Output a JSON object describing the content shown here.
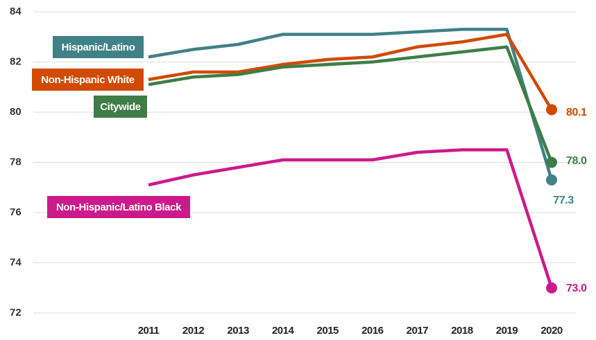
{
  "chart_data": {
    "type": "line",
    "x": [
      2011,
      2012,
      2013,
      2014,
      2015,
      2016,
      2017,
      2018,
      2019,
      2020
    ],
    "xticks": [
      2011,
      2012,
      2013,
      2014,
      2015,
      2016,
      2017,
      2018,
      2019,
      2020
    ],
    "xlim": [
      2011,
      2020
    ],
    "ylim": [
      72,
      84
    ],
    "yticks": [
      72,
      74,
      76,
      78,
      80,
      82,
      84
    ],
    "grid": true,
    "series": [
      {
        "name": "Hispanic/Latino",
        "color": "#3f8187",
        "values": [
          82.2,
          82.5,
          82.7,
          83.1,
          83.1,
          83.1,
          83.2,
          83.3,
          83.3,
          77.3
        ],
        "value_labels": [
          null,
          null,
          null,
          null,
          null,
          null,
          null,
          null,
          null,
          "77.3"
        ]
      },
      {
        "name": "Non-Hispanic White",
        "color": "#d04a02",
        "values": [
          81.3,
          81.6,
          81.6,
          81.9,
          82.1,
          82.2,
          82.6,
          82.8,
          83.1,
          80.1
        ],
        "value_labels": [
          null,
          null,
          null,
          null,
          null,
          null,
          null,
          null,
          null,
          "80.1"
        ]
      },
      {
        "name": "Citywide",
        "color": "#3e7d45",
        "values": [
          81.1,
          81.4,
          81.5,
          81.8,
          81.9,
          82.0,
          82.2,
          82.4,
          82.6,
          78.0
        ],
        "value_labels": [
          null,
          null,
          null,
          null,
          null,
          null,
          null,
          null,
          null,
          "78.0"
        ]
      },
      {
        "name": "Non-Hispanic/Latino Black",
        "color": "#cc1a8a",
        "values": [
          77.1,
          77.5,
          77.8,
          78.1,
          78.1,
          78.1,
          78.4,
          78.5,
          78.5,
          73.0
        ],
        "value_labels": [
          null,
          null,
          null,
          null,
          null,
          null,
          null,
          null,
          null,
          "73.0"
        ]
      }
    ]
  }
}
